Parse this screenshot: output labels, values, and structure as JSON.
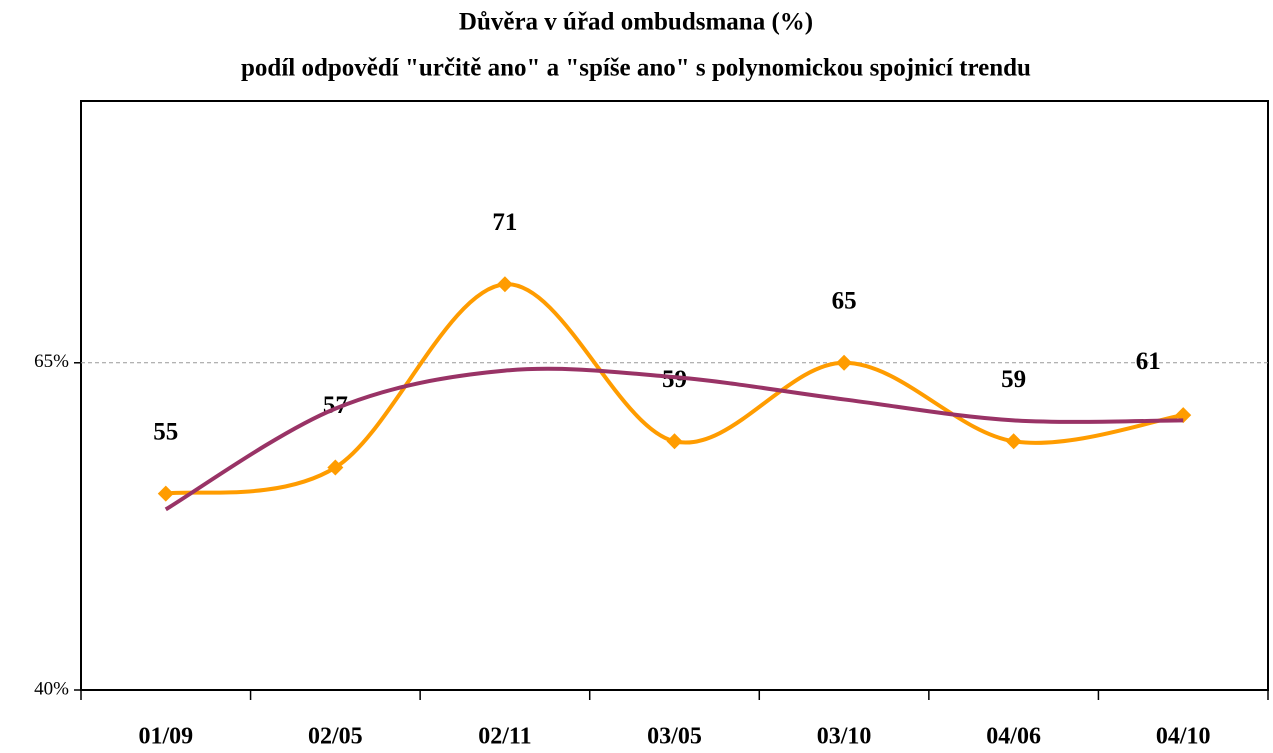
{
  "chart_data": {
    "type": "line",
    "title": "Důvěra v úřad ombudsmana (%)",
    "subtitle": "podíl odpovědí \"určitě ano\" a \"spíše ano\" s polynomickou spojnicí trendu",
    "categories": [
      "01/09",
      "02/05",
      "02/11",
      "03/05",
      "03/10",
      "04/06",
      "04/10"
    ],
    "series": [
      {
        "color": "#ff9c00",
        "values": [
          55,
          57,
          71,
          59,
          65,
          59,
          61
        ],
        "marker": "diamond",
        "data_labels": true
      },
      {
        "color": "#993366",
        "values": [
          53.8,
          61.5,
          64.4,
          63.9,
          62.2,
          60.6,
          60.6
        ]
      }
    ],
    "ylim": [
      40,
      85
    ],
    "yticks": [
      {
        "value": 40,
        "label": "40%"
      },
      {
        "value": 65,
        "label": "65%"
      }
    ],
    "grid": true
  }
}
